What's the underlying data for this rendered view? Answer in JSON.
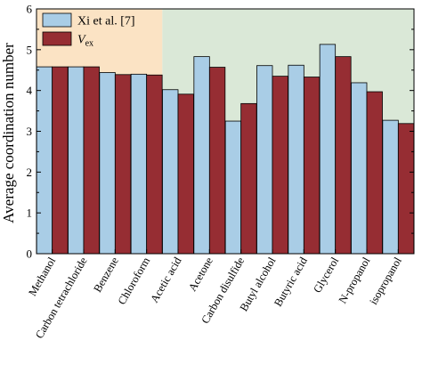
{
  "chart_data": {
    "type": "bar",
    "ylabel": "Average coordination number",
    "xlabel": "",
    "ylim": [
      0,
      6
    ],
    "yticks": [
      0,
      1,
      2,
      3,
      4,
      5,
      6
    ],
    "categories": [
      "Methanol",
      "Carbon tetrachloride",
      "Benzene",
      "Chloroform",
      "Acetic acid",
      "Acetone",
      "Carbon disulfide",
      "Butyl alcohol",
      "Butyric acid",
      "Glycerol",
      "N-propanol",
      "isopropanol"
    ],
    "series": [
      {
        "name": "Xi et al. [7]",
        "color": "#a9cde6",
        "values": [
          4.58,
          4.58,
          4.44,
          4.4,
          4.02,
          4.83,
          3.25,
          4.61,
          4.62,
          5.13,
          4.19,
          3.27
        ]
      },
      {
        "name": "V",
        "name_subscript": "ex",
        "color": "#962d33",
        "values": [
          4.58,
          4.58,
          4.39,
          4.38,
          3.91,
          4.57,
          3.68,
          4.35,
          4.33,
          4.83,
          3.97,
          3.19
        ]
      }
    ],
    "regions": [
      {
        "from_category": 0,
        "to_category": 3,
        "color": "#fbe3c4"
      },
      {
        "from_category": 4,
        "to_category": 11,
        "color": "#dae8d7"
      }
    ],
    "legend": "top-left",
    "grid": false
  }
}
